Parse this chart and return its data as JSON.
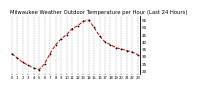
{
  "title": "Milwaukee Weather Outdoor Temperature per Hour (Last 24 Hours)",
  "hours": [
    0,
    1,
    2,
    3,
    4,
    5,
    6,
    7,
    8,
    9,
    10,
    11,
    12,
    13,
    14,
    15,
    16,
    17,
    18,
    19,
    20,
    21,
    22,
    23
  ],
  "temps": [
    32,
    29,
    26,
    24,
    22,
    21,
    25,
    32,
    38,
    42,
    45,
    49,
    51,
    54,
    55,
    50,
    44,
    40,
    38,
    36,
    35,
    34,
    33,
    31
  ],
  "line_color": "#cc0000",
  "marker_color": "#000000",
  "bg_color": "#ffffff",
  "grid_color": "#888888",
  "title_color": "#000000",
  "ylim": [
    18,
    58
  ],
  "ytick_vals": [
    20,
    25,
    30,
    35,
    40,
    45,
    50,
    55
  ],
  "ytick_labels": [
    "20",
    "25",
    "30",
    "35",
    "40",
    "45",
    "50",
    "55"
  ],
  "title_fontsize": 3.8,
  "tick_fontsize": 3.0
}
